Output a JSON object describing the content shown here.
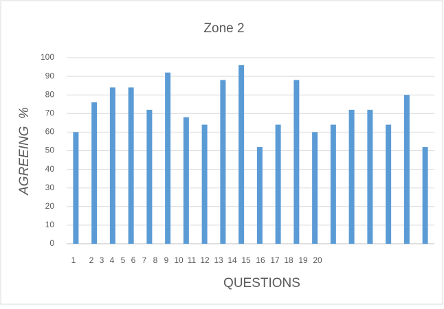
{
  "chart_data": {
    "type": "bar",
    "title": "Zone 2",
    "x_label": "QUESTIONS",
    "y_label": "AGREEING  %",
    "categories": [
      "1",
      "2",
      "3",
      "4",
      "5",
      "6",
      "7",
      "8",
      "9",
      "10",
      "11",
      "12",
      "13",
      "14",
      "15",
      "16",
      "17",
      "18",
      "19",
      "20"
    ],
    "values": [
      60,
      76,
      84,
      84,
      72,
      92,
      68,
      64,
      88,
      96,
      52,
      64,
      88,
      60,
      64,
      72,
      72,
      64,
      80,
      52
    ],
    "color": "#5b9bd5",
    "ylim": [
      0,
      100
    ],
    "yticks": [
      0,
      10,
      20,
      30,
      40,
      50,
      60,
      70,
      80,
      90,
      100
    ],
    "grid": true
  }
}
